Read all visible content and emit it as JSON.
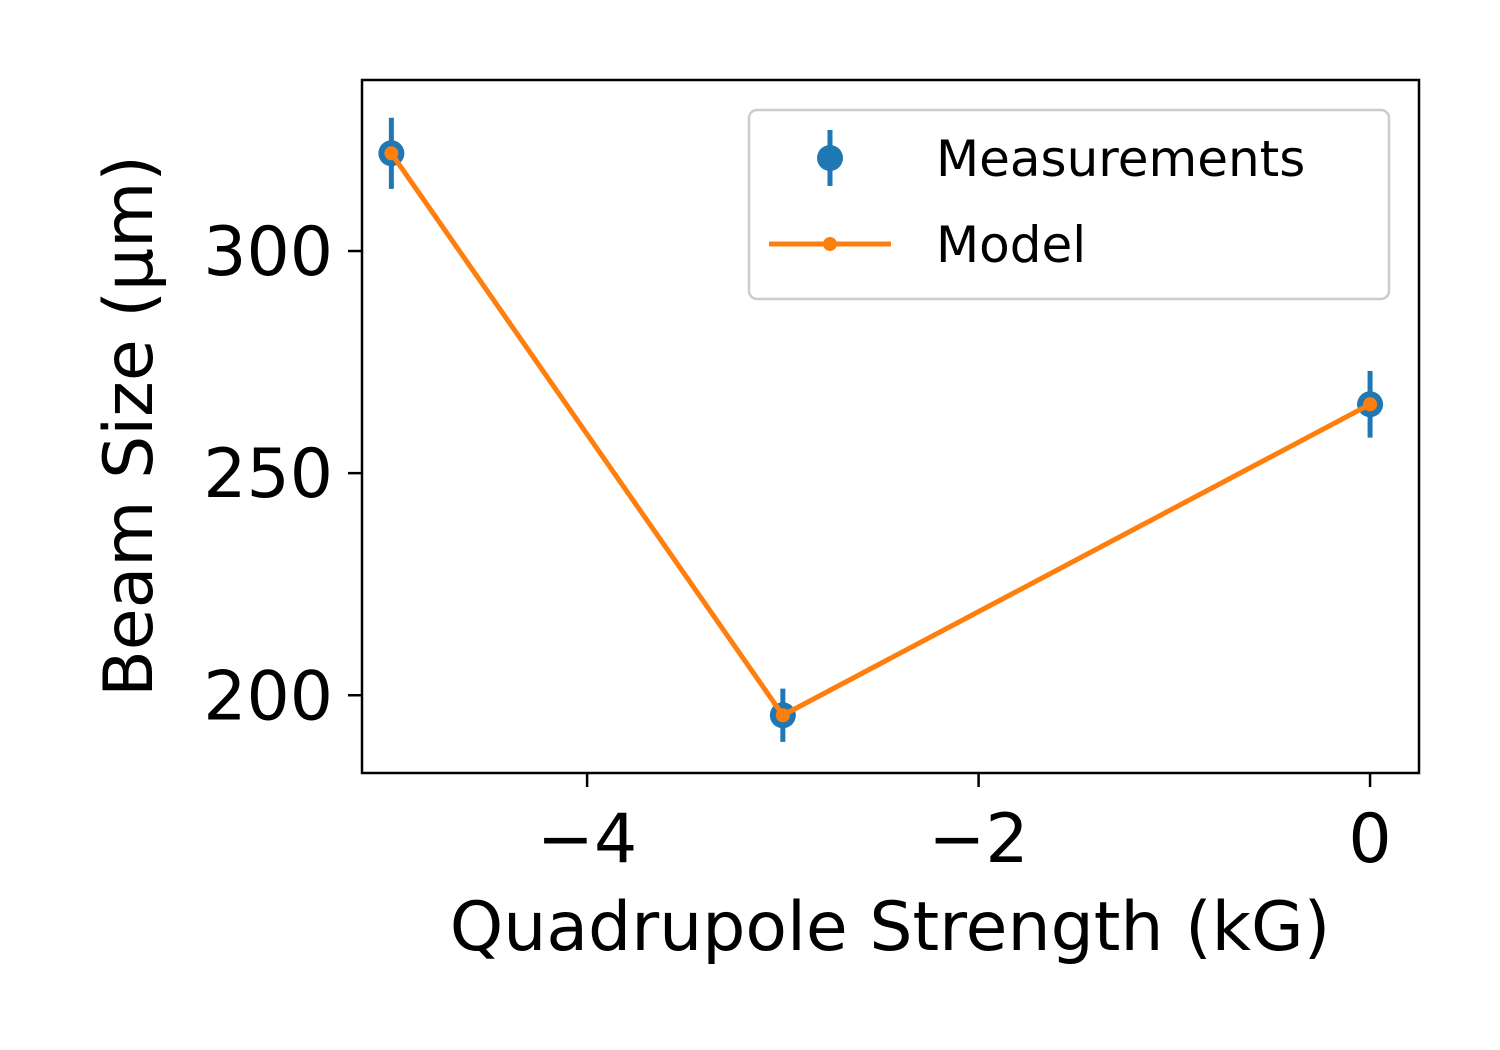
{
  "chart_data": {
    "type": "line",
    "xlabel": "Quadrupole Strength (kG)",
    "ylabel": "Beam Size (μm)",
    "xlim": [
      -5.15,
      0.25
    ],
    "ylim": [
      182.5,
      338.5
    ],
    "x_ticks": [
      -4,
      -2,
      0
    ],
    "x_tick_labels": [
      "−4",
      "−2",
      "0"
    ],
    "y_ticks": [
      200,
      250,
      300
    ],
    "y_tick_labels": [
      "200",
      "250",
      "300"
    ],
    "grid": false,
    "legend_position": "top-right",
    "series": [
      {
        "name": "Measurements",
        "kind": "errorbar",
        "color": "#1f77b4",
        "x": [
          -5.0,
          -3.0,
          0.0
        ],
        "y": [
          322.0,
          195.5,
          265.5
        ],
        "yerr": [
          8.0,
          6.0,
          7.5
        ]
      },
      {
        "name": "Model",
        "kind": "line",
        "color": "#ff7f0e",
        "x": [
          -5.0,
          -3.0,
          0.0
        ],
        "y": [
          322.0,
          195.5,
          265.5
        ]
      }
    ]
  }
}
